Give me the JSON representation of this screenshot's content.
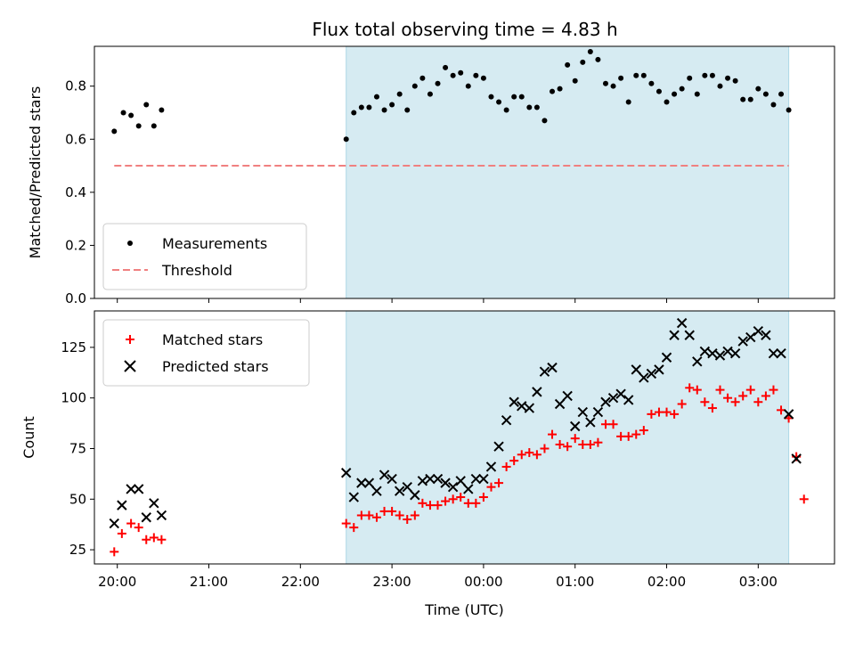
{
  "title": "Flux total observing time = 4.83 h",
  "chart_data": [
    {
      "type": "scatter",
      "panel": "top",
      "ylabel": "Matched/Predicted stars",
      "xlabel": "",
      "xlim": [
        "19:45",
        "03:50"
      ],
      "ylim": [
        0,
        0.95
      ],
      "yticks": [
        0.0,
        0.2,
        0.4,
        0.6,
        0.8
      ],
      "ytick_labels": [
        "0.0",
        "0.2",
        "0.4",
        "0.6",
        "0.8"
      ],
      "grid": false,
      "legend_position": "lower-left",
      "shaded_region": {
        "x_start": "22:30",
        "x_end": "03:20",
        "color": "#add8e6"
      },
      "series": [
        {
          "name": "Measurements",
          "marker": "dot",
          "color": "#000000",
          "points": [
            [
              "19:58",
              0.63
            ],
            [
              "20:04",
              0.7
            ],
            [
              "20:09",
              0.69
            ],
            [
              "20:14",
              0.65
            ],
            [
              "20:19",
              0.73
            ],
            [
              "20:24",
              0.65
            ],
            [
              "20:29",
              0.71
            ],
            [
              "22:30",
              0.6
            ],
            [
              "22:35",
              0.7
            ],
            [
              "22:40",
              0.72
            ],
            [
              "22:45",
              0.72
            ],
            [
              "22:50",
              0.76
            ],
            [
              "22:55",
              0.71
            ],
            [
              "23:00",
              0.73
            ],
            [
              "23:05",
              0.77
            ],
            [
              "23:10",
              0.71
            ],
            [
              "23:15",
              0.8
            ],
            [
              "23:20",
              0.83
            ],
            [
              "23:25",
              0.77
            ],
            [
              "23:30",
              0.81
            ],
            [
              "23:35",
              0.87
            ],
            [
              "23:40",
              0.84
            ],
            [
              "23:45",
              0.85
            ],
            [
              "23:50",
              0.8
            ],
            [
              "23:55",
              0.84
            ],
            [
              "00:00",
              0.83
            ],
            [
              "00:05",
              0.76
            ],
            [
              "00:10",
              0.74
            ],
            [
              "00:15",
              0.71
            ],
            [
              "00:20",
              0.76
            ],
            [
              "00:25",
              0.76
            ],
            [
              "00:30",
              0.72
            ],
            [
              "00:35",
              0.72
            ],
            [
              "00:40",
              0.67
            ],
            [
              "00:45",
              0.78
            ],
            [
              "00:50",
              0.79
            ],
            [
              "00:55",
              0.88
            ],
            [
              "01:00",
              0.82
            ],
            [
              "01:05",
              0.89
            ],
            [
              "01:10",
              0.93
            ],
            [
              "01:15",
              0.9
            ],
            [
              "01:20",
              0.81
            ],
            [
              "01:25",
              0.8
            ],
            [
              "01:30",
              0.83
            ],
            [
              "01:35",
              0.74
            ],
            [
              "01:40",
              0.84
            ],
            [
              "01:45",
              0.84
            ],
            [
              "01:50",
              0.81
            ],
            [
              "01:55",
              0.78
            ],
            [
              "02:00",
              0.74
            ],
            [
              "02:05",
              0.77
            ],
            [
              "02:10",
              0.79
            ],
            [
              "02:15",
              0.83
            ],
            [
              "02:20",
              0.77
            ],
            [
              "02:25",
              0.84
            ],
            [
              "02:30",
              0.84
            ],
            [
              "02:35",
              0.8
            ],
            [
              "02:40",
              0.83
            ],
            [
              "02:45",
              0.82
            ],
            [
              "02:50",
              0.75
            ],
            [
              "02:55",
              0.75
            ],
            [
              "03:00",
              0.79
            ],
            [
              "03:05",
              0.77
            ],
            [
              "03:10",
              0.73
            ],
            [
              "03:15",
              0.77
            ],
            [
              "03:20",
              0.71
            ]
          ]
        },
        {
          "name": "Threshold",
          "marker": "dashed-line",
          "color": "#f08080",
          "points": [
            [
              "19:58",
              0.5
            ],
            [
              "03:20",
              0.5
            ]
          ]
        }
      ]
    },
    {
      "type": "scatter",
      "panel": "bottom",
      "xlabel": "Time (UTC)",
      "ylabel": "Count",
      "xlim": [
        "19:45",
        "03:50"
      ],
      "ylim": [
        18,
        143
      ],
      "yticks": [
        25,
        50,
        75,
        100,
        125
      ],
      "ytick_labels": [
        "25",
        "50",
        "75",
        "100",
        "125"
      ],
      "xticks": [
        "20:00",
        "21:00",
        "22:00",
        "23:00",
        "00:00",
        "01:00",
        "02:00",
        "03:00"
      ],
      "xtick_labels": [
        "20:00",
        "21:00",
        "22:00",
        "23:00",
        "00:00",
        "01:00",
        "02:00",
        "03:00"
      ],
      "grid": false,
      "legend_position": "upper-left",
      "shaded_region": {
        "x_start": "22:30",
        "x_end": "03:20",
        "color": "#add8e6"
      },
      "series": [
        {
          "name": "Matched stars",
          "marker": "plus",
          "color": "#ff0000",
          "points": [
            [
              "19:58",
              24
            ],
            [
              "20:03",
              33
            ],
            [
              "20:09",
              38
            ],
            [
              "20:14",
              36
            ],
            [
              "20:19",
              30
            ],
            [
              "20:24",
              31
            ],
            [
              "20:29",
              30
            ],
            [
              "22:30",
              38
            ],
            [
              "22:35",
              36
            ],
            [
              "22:40",
              42
            ],
            [
              "22:45",
              42
            ],
            [
              "22:50",
              41
            ],
            [
              "22:55",
              44
            ],
            [
              "23:00",
              44
            ],
            [
              "23:05",
              42
            ],
            [
              "23:10",
              40
            ],
            [
              "23:15",
              42
            ],
            [
              "23:20",
              48
            ],
            [
              "23:25",
              47
            ],
            [
              "23:30",
              47
            ],
            [
              "23:35",
              49
            ],
            [
              "23:40",
              50
            ],
            [
              "23:45",
              51
            ],
            [
              "23:50",
              48
            ],
            [
              "23:55",
              48
            ],
            [
              "00:00",
              51
            ],
            [
              "00:05",
              56
            ],
            [
              "00:10",
              58
            ],
            [
              "00:15",
              66
            ],
            [
              "00:20",
              69
            ],
            [
              "00:25",
              72
            ],
            [
              "00:30",
              73
            ],
            [
              "00:35",
              72
            ],
            [
              "00:40",
              75
            ],
            [
              "00:45",
              82
            ],
            [
              "00:50",
              77
            ],
            [
              "00:55",
              76
            ],
            [
              "01:00",
              80
            ],
            [
              "01:05",
              77
            ],
            [
              "01:10",
              77
            ],
            [
              "01:15",
              78
            ],
            [
              "01:20",
              87
            ],
            [
              "01:25",
              87
            ],
            [
              "01:30",
              81
            ],
            [
              "01:35",
              81
            ],
            [
              "01:40",
              82
            ],
            [
              "01:45",
              84
            ],
            [
              "01:50",
              92
            ],
            [
              "01:55",
              93
            ],
            [
              "02:00",
              93
            ],
            [
              "02:05",
              92
            ],
            [
              "02:10",
              97
            ],
            [
              "02:15",
              105
            ],
            [
              "02:20",
              104
            ],
            [
              "02:25",
              98
            ],
            [
              "02:30",
              95
            ],
            [
              "02:35",
              104
            ],
            [
              "02:40",
              100
            ],
            [
              "02:45",
              98
            ],
            [
              "02:50",
              101
            ],
            [
              "02:55",
              104
            ],
            [
              "03:00",
              98
            ],
            [
              "03:05",
              101
            ],
            [
              "03:10",
              104
            ],
            [
              "03:15",
              94
            ],
            [
              "03:20",
              90
            ],
            [
              "03:25",
              71
            ],
            [
              "03:30",
              50
            ]
          ]
        },
        {
          "name": "Predicted stars",
          "marker": "x",
          "color": "#000000",
          "points": [
            [
              "19:58",
              38
            ],
            [
              "20:03",
              47
            ],
            [
              "20:09",
              55
            ],
            [
              "20:14",
              55
            ],
            [
              "20:19",
              41
            ],
            [
              "20:24",
              48
            ],
            [
              "20:29",
              42
            ],
            [
              "22:30",
              63
            ],
            [
              "22:35",
              51
            ],
            [
              "22:40",
              58
            ],
            [
              "22:45",
              58
            ],
            [
              "22:50",
              54
            ],
            [
              "22:55",
              62
            ],
            [
              "23:00",
              60
            ],
            [
              "23:05",
              54
            ],
            [
              "23:10",
              56
            ],
            [
              "23:15",
              52
            ],
            [
              "23:20",
              59
            ],
            [
              "23:25",
              60
            ],
            [
              "23:30",
              60
            ],
            [
              "23:35",
              58
            ],
            [
              "23:40",
              56
            ],
            [
              "23:45",
              59
            ],
            [
              "23:50",
              55
            ],
            [
              "23:55",
              60
            ],
            [
              "00:00",
              60
            ],
            [
              "00:05",
              66
            ],
            [
              "00:10",
              76
            ],
            [
              "00:15",
              89
            ],
            [
              "00:20",
              98
            ],
            [
              "00:25",
              96
            ],
            [
              "00:30",
              95
            ],
            [
              "00:35",
              103
            ],
            [
              "00:40",
              113
            ],
            [
              "00:45",
              115
            ],
            [
              "00:50",
              97
            ],
            [
              "00:55",
              101
            ],
            [
              "01:00",
              86
            ],
            [
              "01:05",
              93
            ],
            [
              "01:10",
              88
            ],
            [
              "01:15",
              93
            ],
            [
              "01:20",
              98
            ],
            [
              "01:25",
              100
            ],
            [
              "01:30",
              102
            ],
            [
              "01:35",
              99
            ],
            [
              "01:40",
              114
            ],
            [
              "01:45",
              110
            ],
            [
              "01:50",
              112
            ],
            [
              "01:55",
              114
            ],
            [
              "02:00",
              120
            ],
            [
              "02:05",
              131
            ],
            [
              "02:10",
              137
            ],
            [
              "02:15",
              131
            ],
            [
              "02:20",
              118
            ],
            [
              "02:25",
              123
            ],
            [
              "02:30",
              122
            ],
            [
              "02:35",
              121
            ],
            [
              "02:40",
              123
            ],
            [
              "02:45",
              122
            ],
            [
              "02:50",
              128
            ],
            [
              "02:55",
              130
            ],
            [
              "03:00",
              133
            ],
            [
              "03:05",
              131
            ],
            [
              "03:10",
              122
            ],
            [
              "03:15",
              122
            ],
            [
              "03:20",
              92
            ],
            [
              "03:25",
              70
            ]
          ]
        }
      ]
    }
  ]
}
